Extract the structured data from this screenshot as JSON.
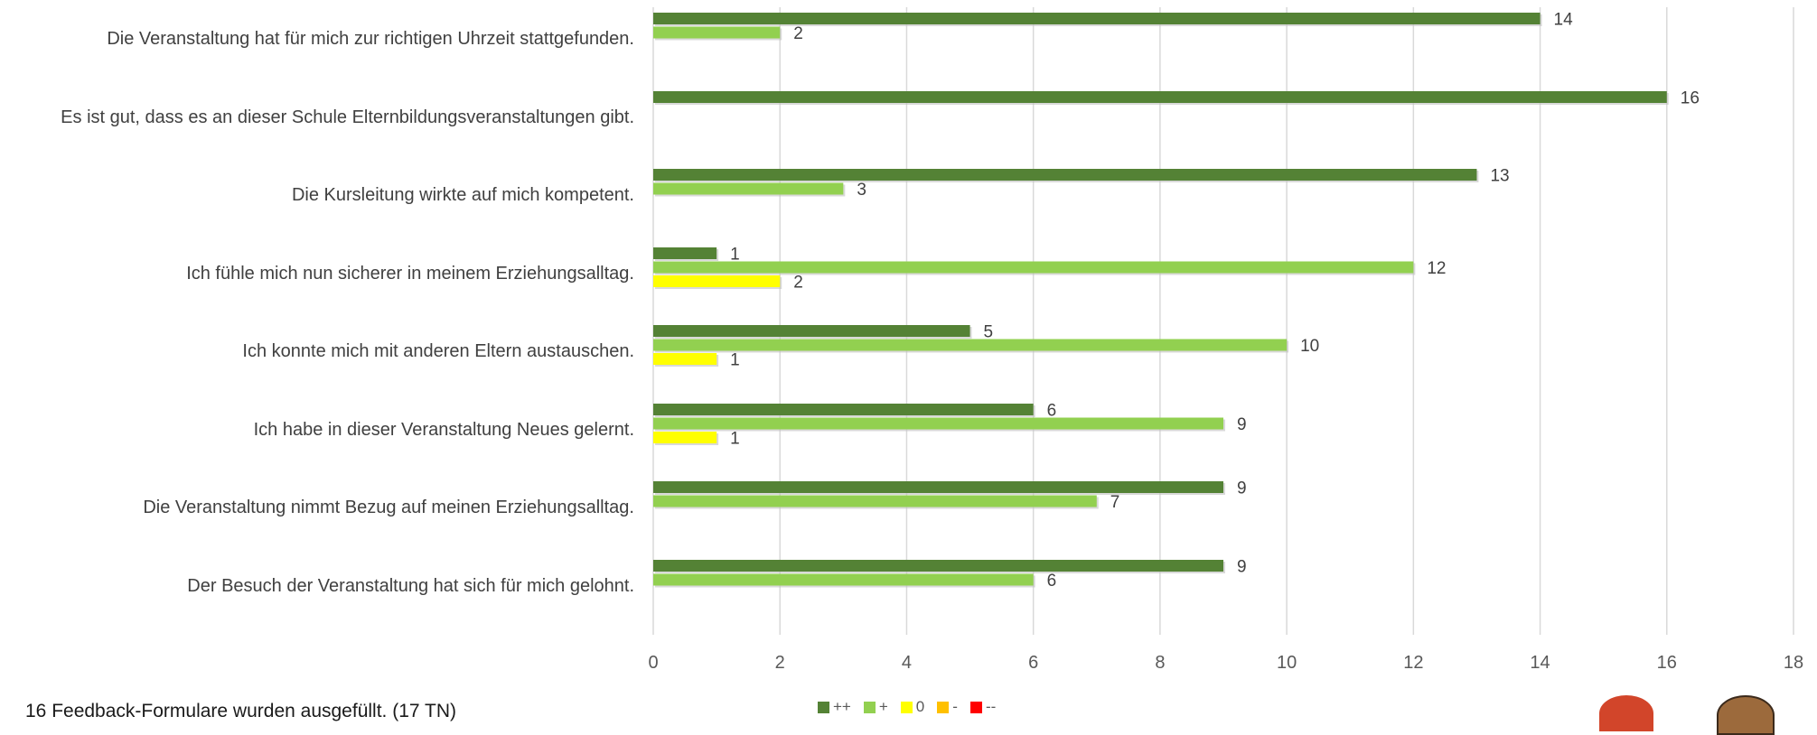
{
  "chart_data": {
    "type": "bar",
    "orientation": "horizontal",
    "categories": [
      "Die Veranstaltung hat für mich zur richtigen Uhrzeit stattgefunden.",
      "Es ist gut, dass es an dieser Schule Elternbildungsveranstaltungen gibt.",
      "Die Kursleitung wirkte auf mich kompetent.",
      "Ich fühle mich nun sicherer in meinem Erziehungsalltag.",
      "Ich konnte mich mit anderen Eltern austauschen.",
      "Ich habe in dieser Veranstaltung Neues gelernt.",
      "Die Veranstaltung nimmt Bezug auf meinen Erziehungsalltag.",
      "Der Besuch der Veranstaltung hat sich für mich gelohnt."
    ],
    "series": [
      {
        "name": "++",
        "color": "#548235",
        "values": [
          14,
          16,
          13,
          1,
          5,
          6,
          9,
          9
        ]
      },
      {
        "name": "+",
        "color": "#92d050",
        "values": [
          2,
          null,
          3,
          12,
          10,
          9,
          7,
          6
        ]
      },
      {
        "name": "0",
        "color": "#ffff00",
        "values": [
          null,
          null,
          null,
          2,
          1,
          1,
          null,
          null
        ]
      },
      {
        "name": "-",
        "color": "#ffc000",
        "values": [
          null,
          null,
          null,
          null,
          null,
          null,
          null,
          null
        ]
      },
      {
        "name": "--",
        "color": "#ff0000",
        "values": [
          null,
          null,
          null,
          null,
          null,
          null,
          null,
          null
        ]
      }
    ],
    "xlim": [
      0,
      18
    ],
    "xticks": [
      "0",
      "2",
      "4",
      "6",
      "8",
      "10",
      "12",
      "14",
      "16",
      "18"
    ],
    "grid": true,
    "legend_position": "bottom"
  },
  "footnote": "16 Feedback-Formulare wurden ausgefüllt. (17 TN)"
}
